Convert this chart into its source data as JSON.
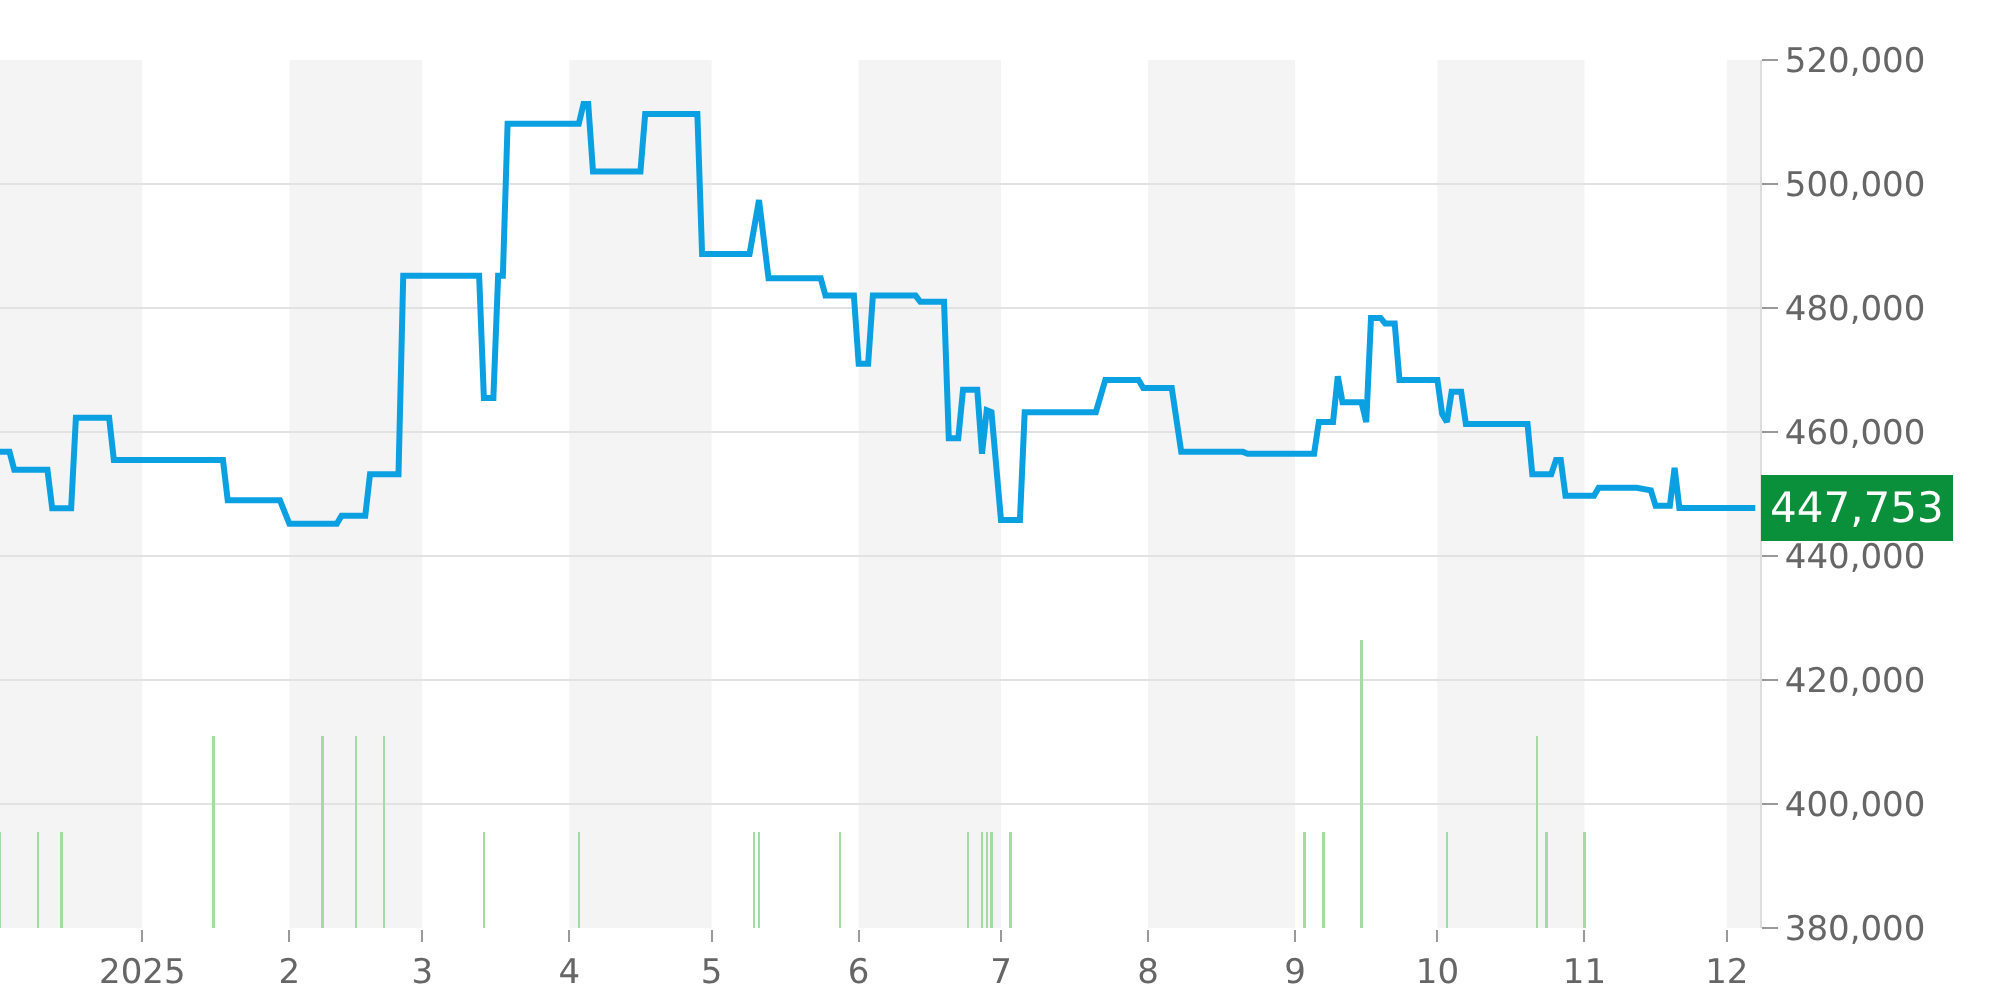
{
  "chart_data": {
    "type": "line",
    "series": [
      {
        "color": "#0aa0e2",
        "x": [
          "2024-12-02",
          "2024-12-04",
          "2024-12-05",
          "2024-12-12",
          "2024-12-13",
          "2024-12-17",
          "2024-12-18",
          "2024-12-25",
          "2024-12-26",
          "2025-01-18",
          "2025-01-19",
          "2025-01-30",
          "2025-02-01",
          "2025-02-11",
          "2025-02-12",
          "2025-02-17",
          "2025-02-18",
          "2025-02-24",
          "2025-02-25",
          "2025-03-13",
          "2025-03-14",
          "2025-03-16",
          "2025-03-17",
          "2025-03-18",
          "2025-03-19",
          "2025-04-03",
          "2025-04-04",
          "2025-04-05",
          "2025-04-06",
          "2025-04-16",
          "2025-04-17",
          "2025-04-28",
          "2025-04-29",
          "2025-05-09",
          "2025-05-11",
          "2025-05-13",
          "2025-05-24",
          "2025-05-25",
          "2025-05-31",
          "2025-06-01",
          "2025-06-03",
          "2025-06-04",
          "2025-06-13",
          "2025-06-14",
          "2025-06-19",
          "2025-06-20",
          "2025-06-22",
          "2025-06-23",
          "2025-06-26",
          "2025-06-27",
          "2025-06-28",
          "2025-06-29",
          "2025-07-01",
          "2025-07-05",
          "2025-07-06",
          "2025-07-21",
          "2025-07-23",
          "2025-07-30",
          "2025-07-31",
          "2025-08-06",
          "2025-08-08",
          "2025-08-21",
          "2025-08-22",
          "2025-09-05",
          "2025-09-06",
          "2025-09-09",
          "2025-09-10",
          "2025-09-11",
          "2025-09-15",
          "2025-09-16",
          "2025-09-17",
          "2025-09-19",
          "2025-09-20",
          "2025-09-22",
          "2025-09-23",
          "2025-10-01",
          "2025-10-02",
          "2025-10-03",
          "2025-10-04",
          "2025-10-06",
          "2025-10-07",
          "2025-10-20",
          "2025-10-21",
          "2025-10-25",
          "2025-10-26",
          "2025-10-27",
          "2025-10-28",
          "2025-11-03",
          "2025-11-04",
          "2025-11-12",
          "2025-11-15",
          "2025-11-16",
          "2025-11-19",
          "2025-11-20",
          "2025-11-21",
          "2025-12-07"
        ],
        "values": [
          456800,
          456800,
          453900,
          453900,
          447700,
          447700,
          462300,
          462300,
          455500,
          455500,
          449000,
          449000,
          445200,
          445200,
          446500,
          446500,
          453200,
          453200,
          485200,
          485200,
          465500,
          465500,
          485200,
          485200,
          509700,
          509700,
          512900,
          512900,
          502000,
          502000,
          511300,
          511300,
          488700,
          488700,
          497400,
          484800,
          484800,
          482000,
          482000,
          471000,
          471000,
          482000,
          482000,
          481000,
          481000,
          459000,
          459000,
          466800,
          466800,
          456500,
          463500,
          463200,
          445800,
          445800,
          463200,
          463200,
          468400,
          468400,
          467100,
          467100,
          456800,
          456800,
          456500,
          456500,
          461600,
          461600,
          469000,
          464800,
          464800,
          461600,
          478400,
          478400,
          477500,
          477500,
          468400,
          468400,
          462900,
          461600,
          466500,
          466500,
          461300,
          461300,
          453200,
          453200,
          455500,
          455500,
          449700,
          449700,
          451000,
          451000,
          450600,
          448100,
          448100,
          454200,
          447753,
          447753
        ]
      },
      {
        "type": "bar",
        "color": "#a3dba3",
        "x": [
          "2024-12-02",
          "2024-12-10",
          "2024-12-15",
          "2025-01-16",
          "2025-02-08",
          "2025-02-15",
          "2025-02-21",
          "2025-03-14",
          "2025-04-03",
          "2025-05-10",
          "2025-05-11",
          "2025-05-28",
          "2025-06-24",
          "2025-06-27",
          "2025-06-28",
          "2025-06-29",
          "2025-07-03",
          "2025-09-03",
          "2025-09-07",
          "2025-09-15",
          "2025-10-03",
          "2025-10-22",
          "2025-10-24",
          "2025-11-01"
        ],
        "values": [
          395500,
          395500,
          395500,
          411000,
          411000,
          411000,
          411000,
          395500,
          395500,
          395500,
          395500,
          395500,
          395500,
          395500,
          395500,
          395500,
          395500,
          395500,
          395500,
          426500,
          395500,
          411000,
          395500,
          395500
        ]
      }
    ],
    "xlim": [
      "2024-12-02",
      "2025-12-08"
    ],
    "xticks": [
      {
        "value": "2025-01-01",
        "label": "2025"
      },
      {
        "value": "2025-02-01",
        "label": "2"
      },
      {
        "value": "2025-03-01",
        "label": "3"
      },
      {
        "value": "2025-04-01",
        "label": "4"
      },
      {
        "value": "2025-05-01",
        "label": "5"
      },
      {
        "value": "2025-06-01",
        "label": "6"
      },
      {
        "value": "2025-07-01",
        "label": "7"
      },
      {
        "value": "2025-08-01",
        "label": "8"
      },
      {
        "value": "2025-09-01",
        "label": "9"
      },
      {
        "value": "2025-10-01",
        "label": "10"
      },
      {
        "value": "2025-11-01",
        "label": "11"
      },
      {
        "value": "2025-12-01",
        "label": "12"
      }
    ],
    "ylim": [
      380000,
      520000
    ],
    "yticks": [
      {
        "value": 380000,
        "label": "380,000"
      },
      {
        "value": 400000,
        "label": "400,000"
      },
      {
        "value": 420000,
        "label": "420,000"
      },
      {
        "value": 440000,
        "label": "440,000"
      },
      {
        "value": 460000,
        "label": "460,000"
      },
      {
        "value": 480000,
        "label": "480,000"
      },
      {
        "value": 500000,
        "label": "500,000"
      },
      {
        "value": 520000,
        "label": "520,000"
      }
    ],
    "bands": [
      {
        "axis": "x",
        "from": "2024-12-02",
        "to": "2025-01-01",
        "color": "#f4f4f4"
      },
      {
        "axis": "x",
        "from": "2025-02-01",
        "to": "2025-03-01",
        "color": "#f4f4f4"
      },
      {
        "axis": "x",
        "from": "2025-04-01",
        "to": "2025-05-01",
        "color": "#f4f4f4"
      },
      {
        "axis": "x",
        "from": "2025-06-01",
        "to": "2025-07-01",
        "color": "#f4f4f4"
      },
      {
        "axis": "x",
        "from": "2025-08-01",
        "to": "2025-09-01",
        "color": "#f4f4f4"
      },
      {
        "axis": "x",
        "from": "2025-10-01",
        "to": "2025-11-01",
        "color": "#f4f4f4"
      },
      {
        "axis": "x",
        "from": "2025-12-01",
        "to": "2025-12-08",
        "color": "#f4f4f4"
      }
    ],
    "annotations": [
      {
        "text": "447,753",
        "x": "2025-12-07",
        "y": 447753
      }
    ],
    "grid": "y",
    "marker": "none",
    "line_style": "solid"
  }
}
